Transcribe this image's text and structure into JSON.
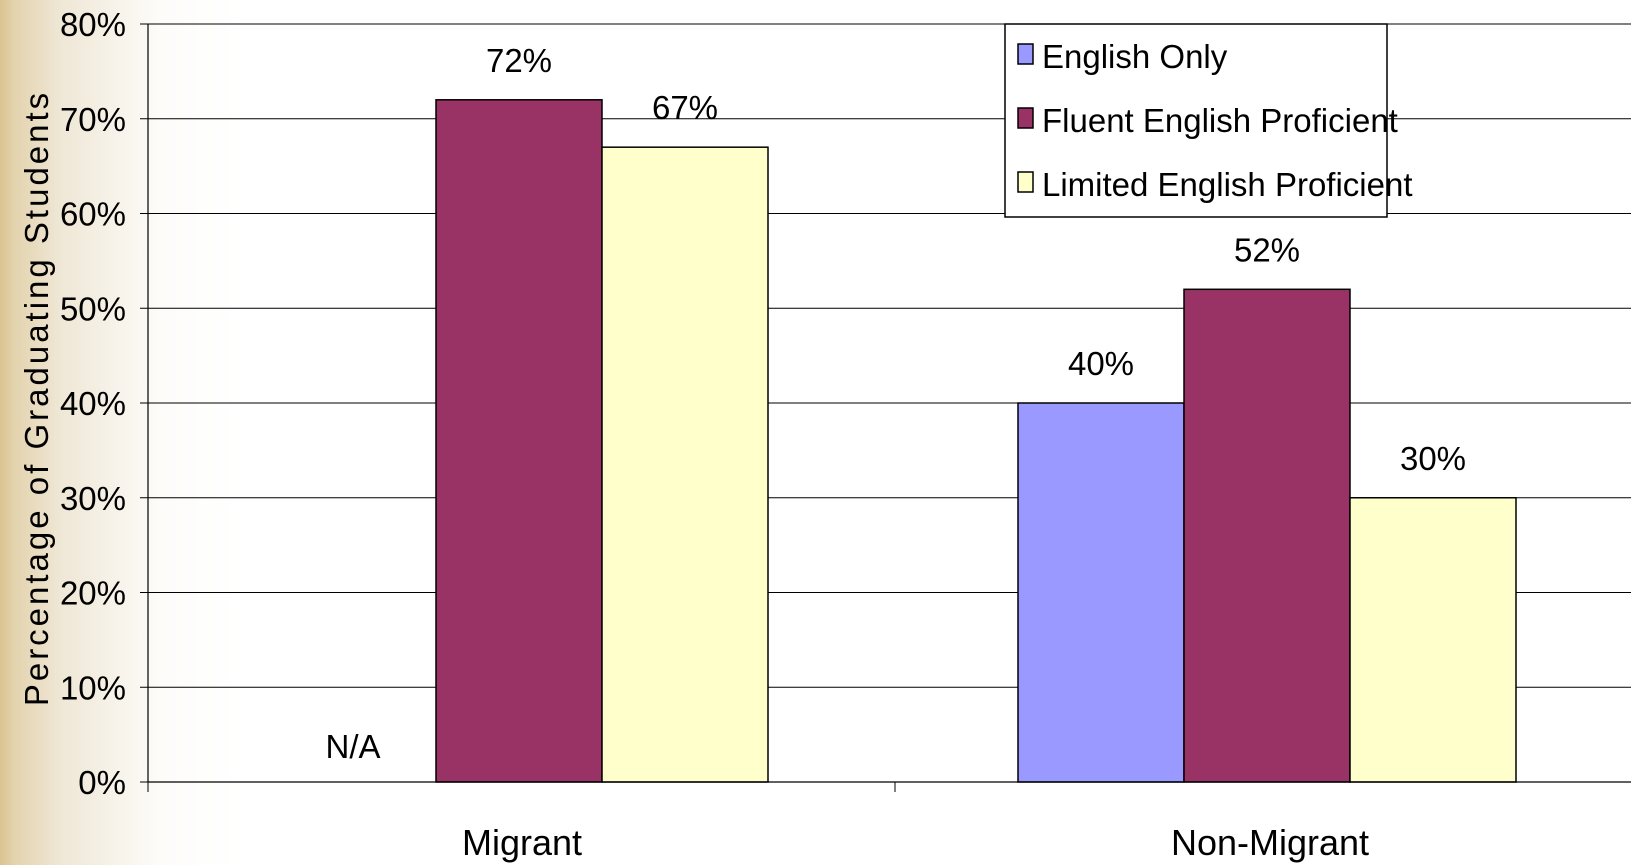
{
  "chart_data": {
    "type": "bar",
    "title": "",
    "xlabel": "",
    "ylabel": "Percentage of Graduating Students",
    "ylim": [
      0,
      80
    ],
    "y_ticks": [
      "0%",
      "10%",
      "20%",
      "30%",
      "40%",
      "50%",
      "60%",
      "70%",
      "80%"
    ],
    "grid": true,
    "legend_position": "top-right",
    "categories": [
      "Migrant",
      "Non-Migrant"
    ],
    "series": [
      {
        "name": "English Only",
        "color": "#9999ff",
        "values": [
          null,
          40
        ],
        "labels": [
          "N/A",
          "40%"
        ]
      },
      {
        "name": "Fluent English Proficient",
        "color": "#993366",
        "values": [
          72,
          52
        ],
        "labels": [
          "72%",
          "52%"
        ]
      },
      {
        "name": "Limited English Proficient",
        "color": "#ffffcc",
        "values": [
          67,
          30
        ],
        "labels": [
          "67%",
          "30%"
        ]
      }
    ]
  }
}
